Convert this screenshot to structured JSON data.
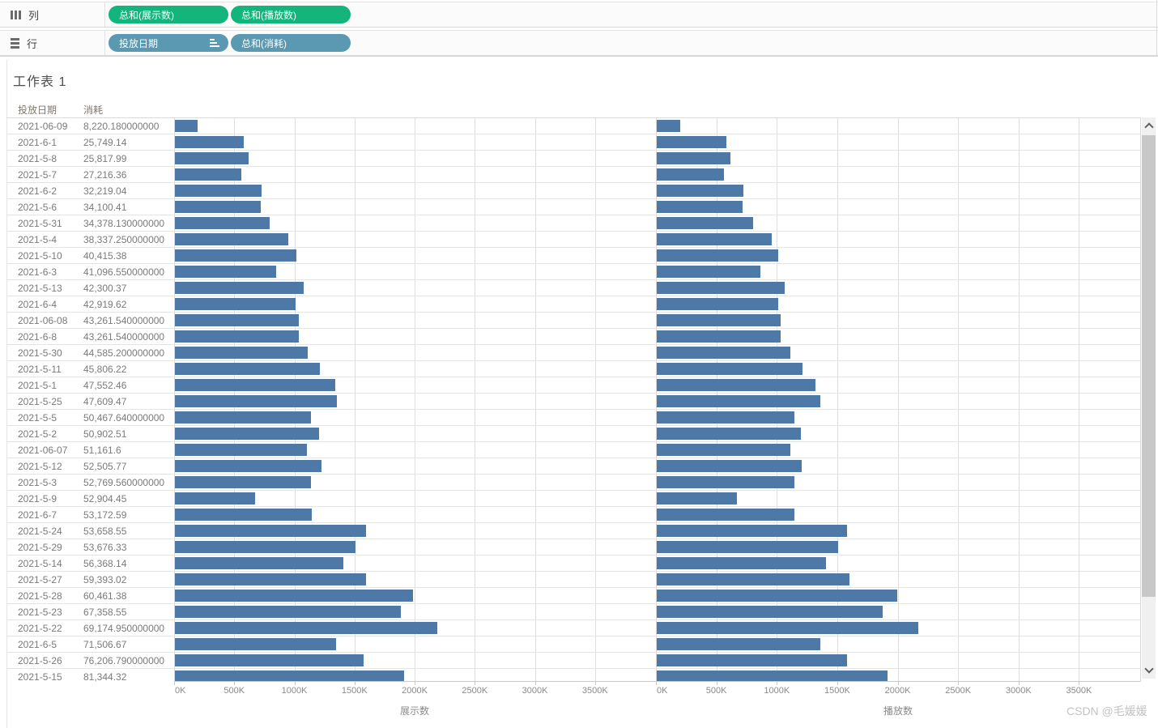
{
  "shelves": {
    "columns_shelf": {
      "label": "列",
      "pills": [
        {
          "label": "总和(展示数)"
        },
        {
          "label": "总和(播放数)"
        }
      ]
    },
    "rows_shelf": {
      "label": "行",
      "pills": [
        {
          "label": "投放日期",
          "sorted": true
        },
        {
          "label": "总和(消耗)"
        }
      ]
    }
  },
  "sheet": {
    "title": "工作表 1"
  },
  "table": {
    "headers": [
      "投放日期",
      "消耗"
    ]
  },
  "chart_data": {
    "type": "bar",
    "orientation": "horizontal",
    "title": "工作表 1",
    "categories": [
      "2021-06-09",
      "2021-6-1",
      "2021-5-8",
      "2021-5-7",
      "2021-6-2",
      "2021-5-6",
      "2021-5-31",
      "2021-5-4",
      "2021-5-10",
      "2021-6-3",
      "2021-5-13",
      "2021-6-4",
      "2021-06-08",
      "2021-6-8",
      "2021-5-30",
      "2021-5-11",
      "2021-5-1",
      "2021-5-25",
      "2021-5-5",
      "2021-5-2",
      "2021-06-07",
      "2021-5-12",
      "2021-5-3",
      "2021-5-9",
      "2021-6-7",
      "2021-5-24",
      "2021-5-29",
      "2021-5-14",
      "2021-5-27",
      "2021-5-28",
      "2021-5-23",
      "2021-5-22",
      "2021-6-5",
      "2021-5-26",
      "2021-5-15"
    ],
    "cost_column": [
      "8,220.180000000",
      "25,749.14",
      "25,817.99",
      "27,216.36",
      "32,219.04",
      "34,100.41",
      "34,378.130000000",
      "38,337.250000000",
      "40,415.38",
      "41,096.550000000",
      "42,300.37",
      "42,919.62",
      "43,261.540000000",
      "43,261.540000000",
      "44,585.200000000",
      "45,806.22",
      "47,552.46",
      "47,609.47",
      "50,467.640000000",
      "50,902.51",
      "51,161.6",
      "52,505.77",
      "52,769.560000000",
      "52,904.45",
      "53,172.59",
      "53,658.55",
      "53,676.33",
      "56,368.14",
      "59,393.02",
      "60,461.38",
      "67,358.55",
      "69,174.950000000",
      "71,506.67",
      "76,206.790000000",
      "81,344.32"
    ],
    "series": [
      {
        "name": "展示数",
        "unit": "K",
        "values": [
          190,
          574,
          615,
          549,
          723,
          714,
          791,
          946,
          1010,
          845,
          1074,
          1000,
          1031,
          1031,
          1107,
          1207,
          1331,
          1347,
          1133,
          1200,
          1100,
          1220,
          1131,
          670,
          1138,
          1587,
          1500,
          1398,
          1587,
          1980,
          1880,
          2180,
          1340,
          1571,
          1905
        ]
      },
      {
        "name": "播放数",
        "unit": "K",
        "values": [
          192,
          576,
          607,
          556,
          720,
          713,
          794,
          954,
          1005,
          855,
          1060,
          1005,
          1024,
          1024,
          1104,
          1203,
          1316,
          1351,
          1137,
          1192,
          1104,
          1199,
          1137,
          662,
          1139,
          1576,
          1503,
          1397,
          1596,
          1987,
          1868,
          2166,
          1351,
          1576,
          1907
        ]
      }
    ],
    "x_ticks": [
      "0K",
      "500K",
      "1000K",
      "1500K",
      "2000K",
      "2500K",
      "3000K",
      "3500K"
    ],
    "xlim": [
      0,
      4000
    ],
    "grid": true,
    "legend": "none",
    "axis_titles": [
      "展示数",
      "播放数"
    ],
    "bar_color": "#4e79a7"
  },
  "colors": {
    "bar": "#4e79a7",
    "measure_pill": "#14b47d",
    "dimension_pill": "#5b98b1",
    "gridline": "#dedede"
  },
  "watermark": "CSDN @毛媛媛"
}
